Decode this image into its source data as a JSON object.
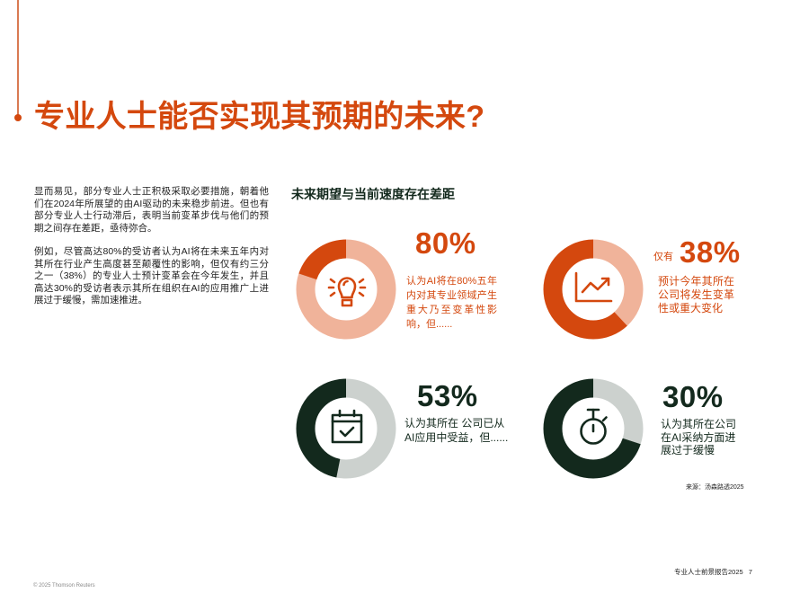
{
  "header": {
    "title": "专业人士能否实现其预期的未来?"
  },
  "body": {
    "paragraphs": [
      {
        "lines": [
          "显而易见，部分专业人士正积极采取必要措施，朝着他",
          "们在2024年所展望的由AI驱动的未来稳步前进。但也有",
          "部分专业人士行动滞后，表明当前变革步伐与他们的预",
          "期之间存在差距，亟待弥合。"
        ]
      },
      {
        "lines": [
          "例如，尽管高达80%的受访者认为AI将在未来五年内对",
          "其所在行业产生高度甚至颠覆性的影响，但仅有约三分",
          "之一（38%）的专业人士预计变革会在今年发生，并且",
          "高达30%的受访者表示其所在组织在AI的应用推广上进",
          "展过于缓慢，需加速推进。"
        ]
      }
    ]
  },
  "infographic": {
    "title": "未来期望与当前速度存在差距",
    "stats": [
      {
        "icon": "lightbulb-icon",
        "prefix": "",
        "value": "80%",
        "desc_lines": [
          "认为AI将在80%五年",
          "内对其专业领域产生",
          "重大乃至变革性影",
          "响，但......"
        ]
      },
      {
        "icon": "trend-chart-icon",
        "prefix": "仅有",
        "value": "38%",
        "desc_lines": [
          "预计今年其所在",
          "公司将发生变革",
          "性或重大变化"
        ]
      },
      {
        "icon": "calendar-check-icon",
        "prefix": "",
        "value": "53%",
        "desc_lines": [
          "认为其所在 公司已从",
          "AI应用中受益，但......"
        ]
      },
      {
        "icon": "stopwatch-icon",
        "prefix": "",
        "value": "30%",
        "desc_lines": [
          "认为其所在公司",
          "在AI采纳方面进",
          "展过于缓慢"
        ]
      }
    ],
    "source": "来源：汤森路透2025"
  },
  "footer": {
    "report_name": "专业人士前景报告2025",
    "page_number": "7",
    "copyright": "© 2025 Thomson Reuters"
  },
  "colors": {
    "accent_orange": "#D4480E",
    "light_salmon": "#F0B39A",
    "dark_green": "#13291D",
    "light_gray": "#CCD1CE"
  },
  "chart_data": [
    {
      "type": "pie",
      "variant": "donut",
      "title": "未来期望与当前速度存在差距",
      "label": "80%",
      "start": "top, clockwise",
      "categories": [
        "认为AI将在五年内对其专业领域产生重大乃至变革性影响",
        "其他"
      ],
      "values": [
        80,
        20
      ],
      "colors": [
        "#F0B39A",
        "#D4480E"
      ]
    },
    {
      "type": "pie",
      "variant": "donut",
      "title": "未来期望与当前速度存在差距",
      "label": "38%",
      "start": "top, clockwise",
      "categories": [
        "预计今年其所在公司将发生变革性或重大变化",
        "其他"
      ],
      "values": [
        38,
        62
      ],
      "colors": [
        "#F0B39A",
        "#D4480E"
      ]
    },
    {
      "type": "pie",
      "variant": "donut",
      "title": "未来期望与当前速度存在差距",
      "label": "53%",
      "start": "top, clockwise",
      "categories": [
        "认为其所在公司已从AI应用中受益",
        "其他"
      ],
      "values": [
        53,
        47
      ],
      "colors": [
        "#CCD1CE",
        "#13291D"
      ]
    },
    {
      "type": "pie",
      "variant": "donut",
      "title": "未来期望与当前速度存在差距",
      "label": "30%",
      "start": "top, clockwise",
      "categories": [
        "认为其所在公司在AI采纳方面进展过于缓慢",
        "其他"
      ],
      "values": [
        30,
        70
      ],
      "colors": [
        "#CCD1CE",
        "#13291D"
      ]
    }
  ]
}
